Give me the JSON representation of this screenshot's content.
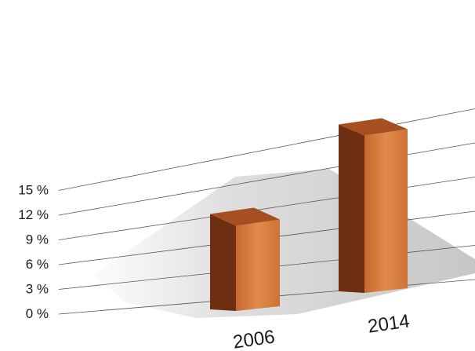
{
  "chart_data": {
    "type": "bar",
    "title": "",
    "xlabel": "",
    "ylabel": "",
    "categories": [
      "2006",
      "2014"
    ],
    "values": [
      9.5,
      16.5
    ],
    "yticks": [
      "0 %",
      "3 %",
      "6 %",
      "9 %",
      "12 %",
      "15 %"
    ],
    "tick_values": [
      0,
      3,
      6,
      9,
      12,
      15
    ],
    "ylim": [
      0,
      18
    ],
    "grid": true,
    "legend": "none",
    "style": "3d-perspective",
    "colors": {
      "bar_front": "#d47a3e",
      "bar_side": "#6e2e12",
      "bar_top": "#a54f22",
      "shadow": "#c8c8c8"
    }
  }
}
